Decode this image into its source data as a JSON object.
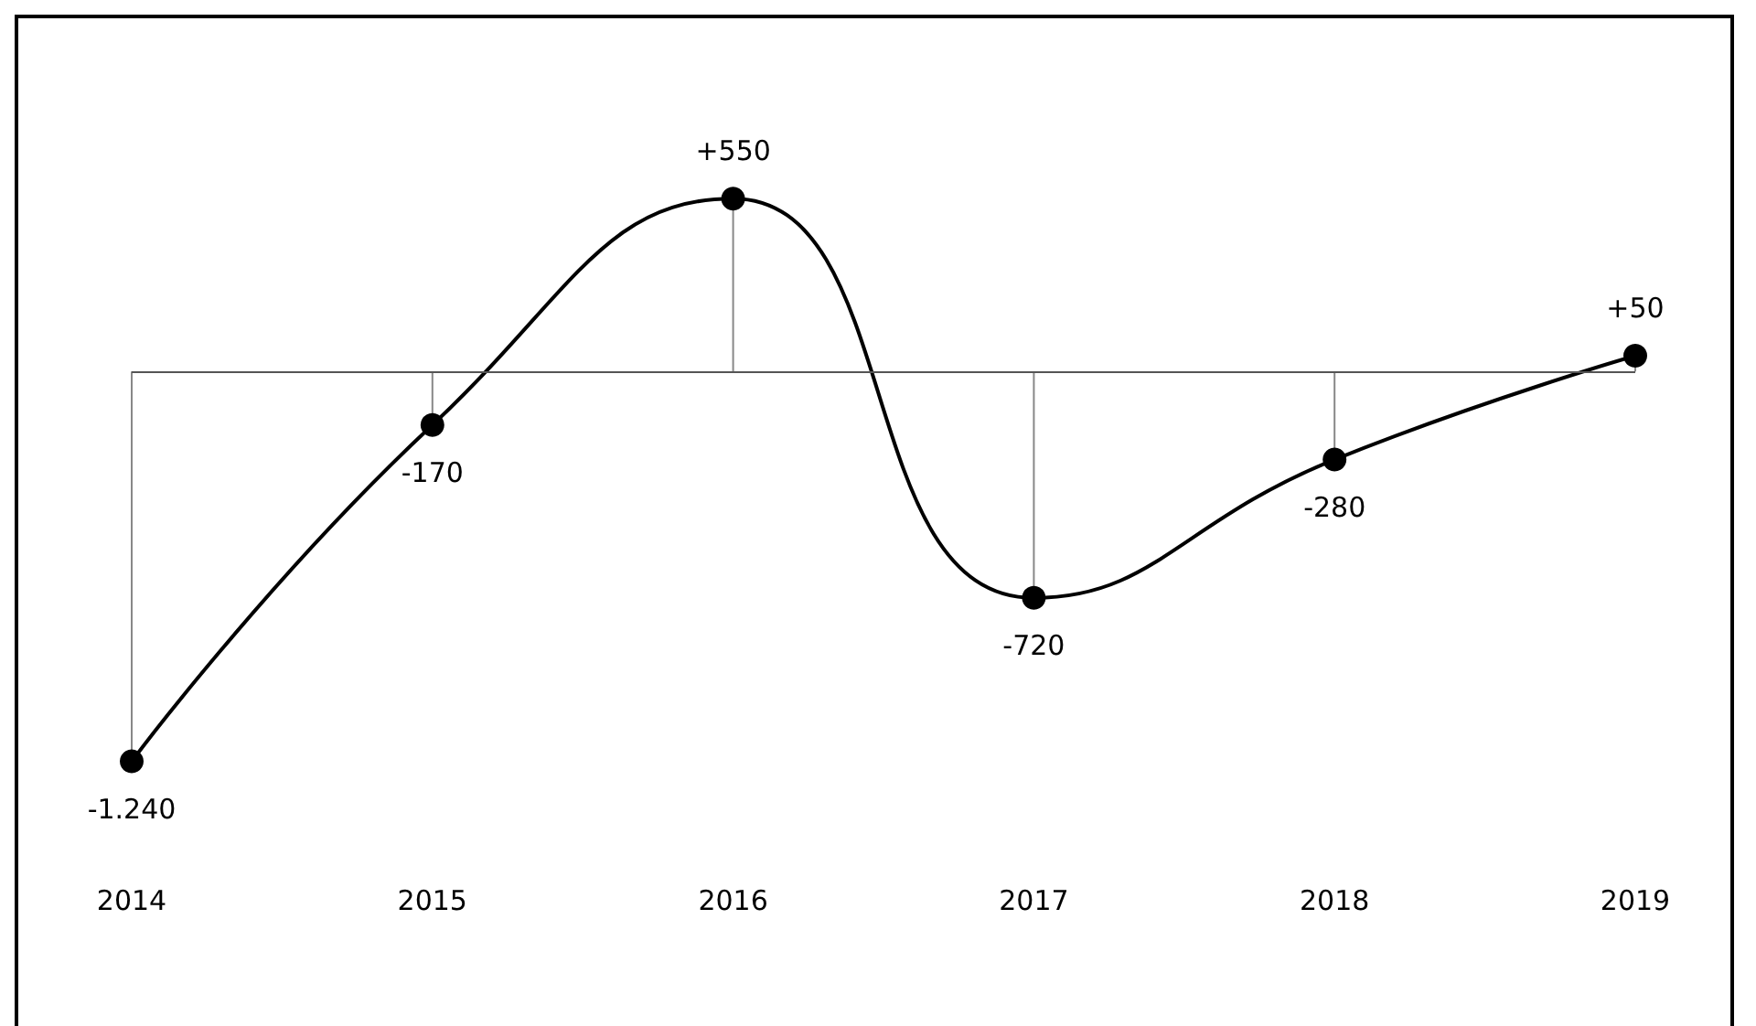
{
  "chart_data": {
    "type": "line",
    "categories": [
      "2014",
      "2015",
      "2016",
      "2017",
      "2018",
      "2019"
    ],
    "series": [
      {
        "color": "#000000",
        "values": [
          -1240,
          -170,
          550,
          -720,
          -280,
          50
        ],
        "value_labels": [
          "-1.240",
          "-170",
          "+550",
          "-720",
          "-280",
          "+50"
        ]
      }
    ],
    "marker": "circle",
    "line_style": "solid",
    "grid": false,
    "tick_labels": "x"
  }
}
